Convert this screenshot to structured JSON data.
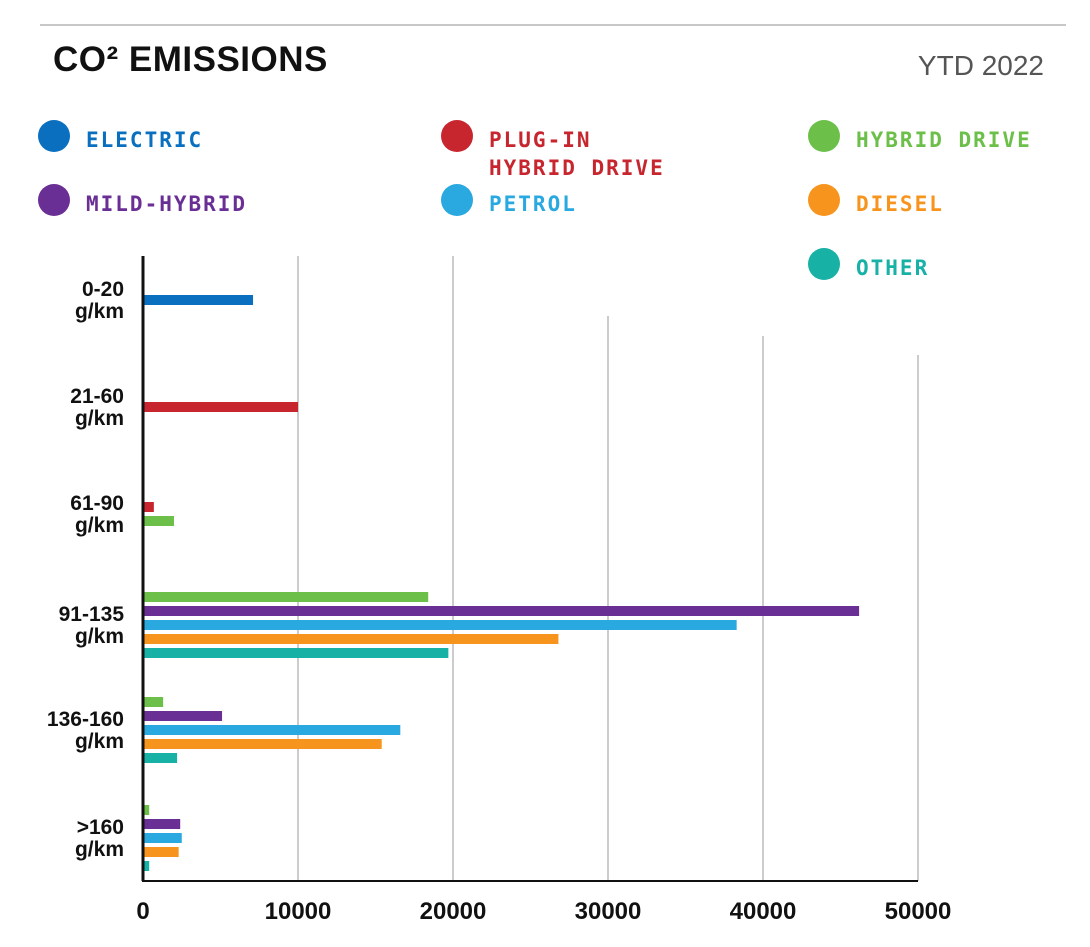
{
  "header": {
    "title": "CO² EMISSIONS",
    "period": "YTD 2022"
  },
  "legend": [
    {
      "label": "ELECTRIC",
      "color": "#0a6fbf"
    },
    {
      "label": "PLUG-IN\nHYBRID DRIVE",
      "color": "#c8262f"
    },
    {
      "label": "HYBRID DRIVE",
      "color": "#6cc04a"
    },
    {
      "label": "MILD-HYBRID",
      "color": "#6a2f94"
    },
    {
      "label": "PETROL",
      "color": "#2aa8e0"
    },
    {
      "label": "DIESEL",
      "color": "#f7941d"
    },
    {
      "label": "OTHER",
      "color": "#17b1a6"
    }
  ],
  "chart_data": {
    "type": "bar",
    "orientation": "horizontal",
    "title": "CO² EMISSIONS",
    "subtitle": "YTD 2022",
    "categories": [
      "0-20\ng/km",
      "21-60\ng/km",
      "61-90\ng/km",
      "91-135\ng/km",
      "136-160\ng/km",
      ">160\ng/km"
    ],
    "xlim": [
      0,
      50000
    ],
    "x_ticks": [
      "0",
      "10000",
      "20000",
      "30000",
      "40000",
      "50000"
    ],
    "grid": true,
    "legend_position": "top",
    "series": [
      {
        "name": "ELECTRIC",
        "color": "#0a6fbf",
        "values": [
          7100,
          null,
          null,
          null,
          null,
          null
        ]
      },
      {
        "name": "PLUG-IN HYBRID DRIVE",
        "color": "#c8262f",
        "values": [
          null,
          10000,
          700,
          null,
          null,
          null
        ]
      },
      {
        "name": "HYBRID DRIVE",
        "color": "#6cc04a",
        "values": [
          null,
          null,
          2000,
          18400,
          1300,
          400
        ]
      },
      {
        "name": "MILD-HYBRID",
        "color": "#6a2f94",
        "values": [
          null,
          null,
          null,
          46200,
          5100,
          2400
        ]
      },
      {
        "name": "PETROL",
        "color": "#2aa8e0",
        "values": [
          null,
          null,
          null,
          38300,
          16600,
          2500
        ]
      },
      {
        "name": "DIESEL",
        "color": "#f7941d",
        "values": [
          null,
          null,
          null,
          26800,
          15400,
          2300
        ]
      },
      {
        "name": "OTHER",
        "color": "#17b1a6",
        "values": [
          null,
          null,
          null,
          19700,
          2200,
          400
        ]
      }
    ]
  }
}
